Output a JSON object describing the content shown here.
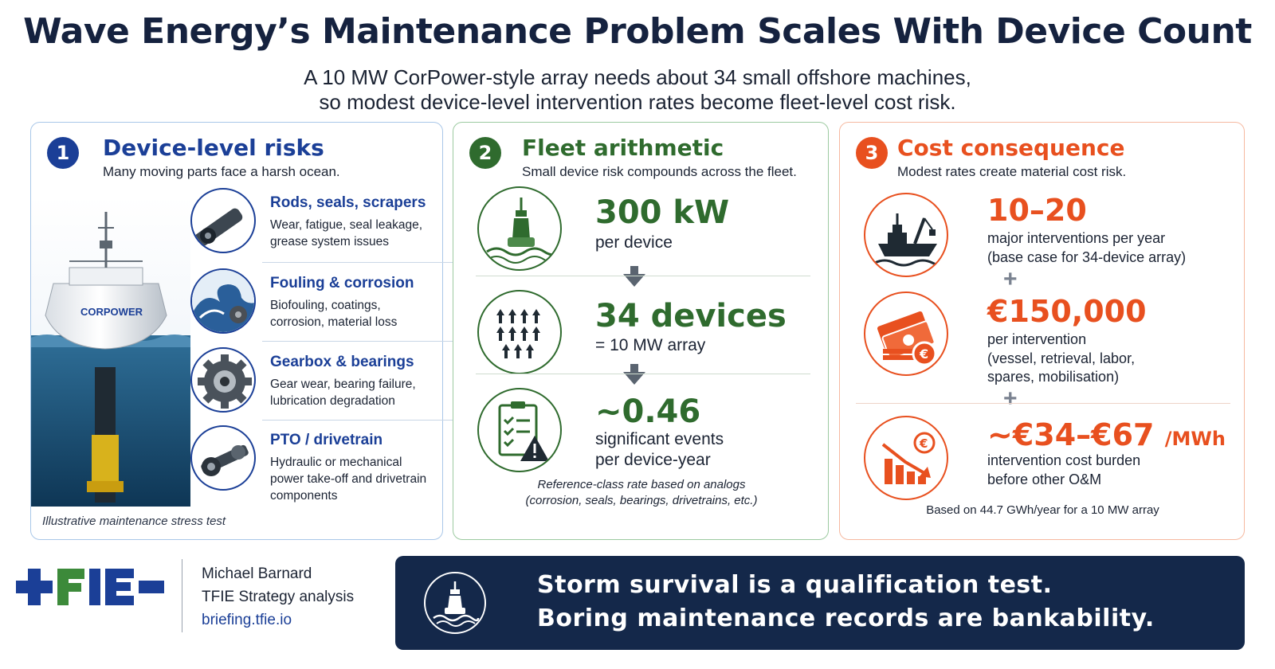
{
  "header": {
    "title": "Wave Energy’s Maintenance Problem Scales With Device Count",
    "subtitle_line1": "A 10 MW CorPower-style array needs about 34 small offshore machines,",
    "subtitle_line2": "so modest device-level intervention rates become fleet-level cost risk."
  },
  "colors": {
    "blue": "#1b3f97",
    "green": "#2f6b2e",
    "orange": "#e8501f",
    "navy": "#14284a"
  },
  "panel1": {
    "number": "1",
    "title": "Device-level risks",
    "subtitle": "Many moving parts face a harsh ocean.",
    "buoy_label": "CORPOWER",
    "risks": [
      {
        "title": "Rods, seals, scrapers",
        "desc": "Wear, fatigue, seal leakage, grease system issues",
        "icon": "rod-icon"
      },
      {
        "title": "Fouling & corrosion",
        "desc": "Biofouling, coatings, corrosion, material loss",
        "icon": "wave-icon"
      },
      {
        "title": "Gearbox & bearings",
        "desc": "Gear wear, bearing failure, lubrication degradation",
        "icon": "gear-icon"
      },
      {
        "title": "PTO / drivetrain",
        "desc": "Hydraulic or mechanical power take-off and drivetrain components",
        "icon": "drivetrain-icon"
      }
    ],
    "note": "Illustrative maintenance stress test"
  },
  "panel2": {
    "number": "2",
    "title": "Fleet arithmetic",
    "subtitle": "Small device risk compounds across the fleet.",
    "items": [
      {
        "value": "300 kW",
        "label1": "per device",
        "label2": "",
        "icon": "buoy-icon"
      },
      {
        "value": "34 devices",
        "label1": "= 10 MW array",
        "label2": "",
        "icon": "array-icon"
      },
      {
        "value": "~0.46",
        "label1": "significant events",
        "label2": "per device-year",
        "icon": "checklist-warning-icon"
      }
    ],
    "note_line1": "Reference-class rate based on analogs",
    "note_line2": "(corrosion, seals, bearings, drivetrains, etc.)"
  },
  "panel3": {
    "number": "3",
    "title": "Cost consequence",
    "subtitle": "Modest rates create material cost risk.",
    "items": [
      {
        "value": "10–20",
        "unit": "",
        "label1": "major interventions per year",
        "label2": "(base case for 34-device array)",
        "label3": "",
        "icon": "vessel-icon"
      },
      {
        "value": "€150,000",
        "unit": "",
        "label1": "per intervention",
        "label2": "(vessel, retrieval, labor,",
        "label3": "spares, mobilisation)",
        "icon": "money-icon"
      },
      {
        "value": "~€34–€67",
        "unit": "/MWh",
        "label1": "intervention cost burden",
        "label2": "before other O&M",
        "label3": "",
        "icon": "declining-chart-icon"
      }
    ],
    "plus": "+",
    "note": "Based on 44.7 GWh/year for a 10 MW array"
  },
  "footer": {
    "logo_text": "TFIE",
    "author": "Michael Barnard",
    "org": "TFIE Strategy analysis",
    "link": "briefing.tfie.io",
    "banner_line1": "Storm survival is a qualification test.",
    "banner_line2": "Boring maintenance records are bankability."
  }
}
